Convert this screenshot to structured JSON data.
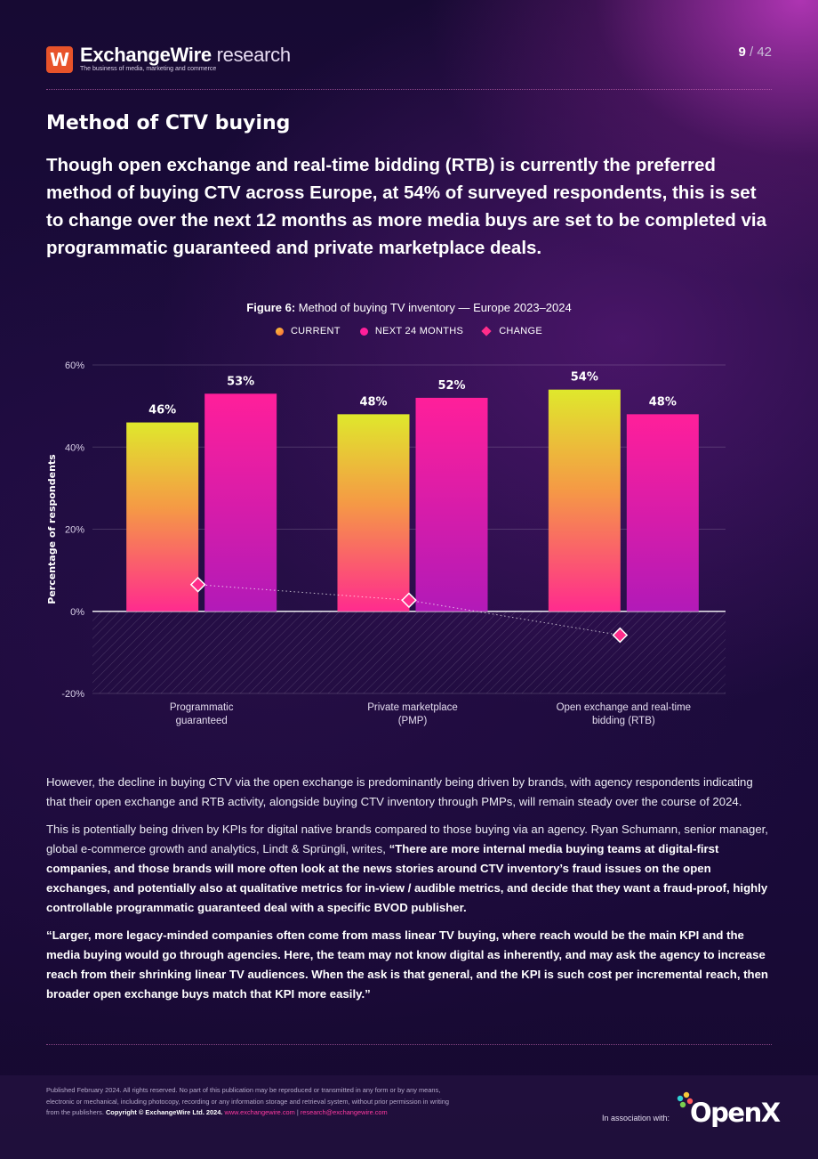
{
  "header": {
    "logo_brand": "ExchangeWire",
    "logo_brand_bold": "Exchange",
    "logo_brand_rest": "Wire",
    "logo_suffix": "research",
    "logo_mark": "W",
    "tagline": "The business of media, marketing and commerce",
    "page_current": "9",
    "page_total": "42"
  },
  "section_title": "Method of CTV buying",
  "lead": "Though open exchange and real-time bidding (RTB) is currently the preferred method of buying CTV across Europe, at 54% of surveyed respondents, this is set to change over the next 12 months as more media buys are set to be completed via programmatic guaranteed and private marketplace deals.",
  "figure": {
    "label": "Figure 6:",
    "title": "Method of buying TV inventory — Europe 2023–2024"
  },
  "chart_data": {
    "type": "bar",
    "title": "Method of buying TV inventory — Europe 2023–2024",
    "xlabel": "",
    "ylabel": "Percentage of respondents",
    "ylim": [
      -20,
      60
    ],
    "yticks": [
      60,
      40,
      20,
      0,
      -20
    ],
    "ytick_labels": [
      "60%",
      "40%",
      "20%",
      "0%",
      "-20%"
    ],
    "grid": true,
    "legend_position": "top-center",
    "categories": [
      "Programmatic guaranteed",
      "Private marketplace (PMP)",
      "Open exchange and real-time bidding (RTB)"
    ],
    "category_lines": [
      [
        "Programmatic",
        "guaranteed"
      ],
      [
        "Private marketplace",
        "(PMP)"
      ],
      [
        "Open exchange and real-time",
        "bidding (RTB)"
      ]
    ],
    "series": [
      {
        "name": "CURRENT",
        "type": "bar",
        "values": [
          46,
          48,
          54
        ],
        "labels": [
          "46%",
          "48%",
          "54%"
        ]
      },
      {
        "name": "NEXT 24 MONTHS",
        "type": "bar",
        "values": [
          53,
          52,
          48
        ],
        "labels": [
          "53%",
          "52%",
          "48%"
        ]
      },
      {
        "name": "CHANGE",
        "type": "line-marker",
        "values": [
          6.5,
          2.7,
          -5.8
        ]
      }
    ]
  },
  "colors": {
    "current_top": "#dfe82c",
    "current_bottom": "#ff2b8e",
    "next_top": "#ff1f9a",
    "next_bottom": "#b21ab8",
    "change": "#ff2d8a",
    "accent_link": "#ff3aa0",
    "logo_mark": "#e8532a"
  },
  "body": {
    "p1": "However, the decline in buying CTV via the open exchange is predominantly being driven by brands, with agency respondents indicating that their open exchange and RTB activity, alongside buying CTV inventory through PMPs, will remain steady over the course of 2024.",
    "p2_intro": "This is potentially being driven by KPIs for digital native brands compared to those buying via an agency. Ryan Schumann, senior manager, global e-commerce growth and analytics, Lindt & Sprüngli, writes,",
    "p2_quote": "“There are more internal media buying teams at digital-first companies, and those brands will more often look at the news stories around CTV inventory’s fraud issues on the open exchanges, and potentially also at qualitative metrics for in-view / audible metrics, and decide that they want a fraud-proof, highly controllable programmatic guaranteed deal with a specific BVOD publisher.",
    "p3_quote": "“Larger, more legacy-minded companies often come from mass linear TV buying, where reach would be the main KPI and the media buying would go through agencies. Here, the team may not know digital as inherently, and may ask the agency to increase reach from their shrinking linear TV audiences. When the ask is that general, and the KPI is such cost per incremental reach, then broader open exchange buys match that KPI more easily.”"
  },
  "footer": {
    "legal_line1": "Published February 2024. All rights reserved. No part of this publication may be reproduced or transmitted in any form or by any means,",
    "legal_line2": "electronic or mechanical, including photocopy, recording or any information storage and retrieval system, without prior permission in writing",
    "legal_line3": "from the publishers.",
    "copyright": "Copyright © ExchangeWire Ltd. 2024.",
    "link_web": "www.exchangewire.com",
    "separator": "|",
    "link_email": "research@exchangewire.com",
    "assoc_label": "In association with:",
    "partner": "OpenX"
  },
  "icons": [
    "exchangewire-logo-icon",
    "openx-logo-icon"
  ]
}
